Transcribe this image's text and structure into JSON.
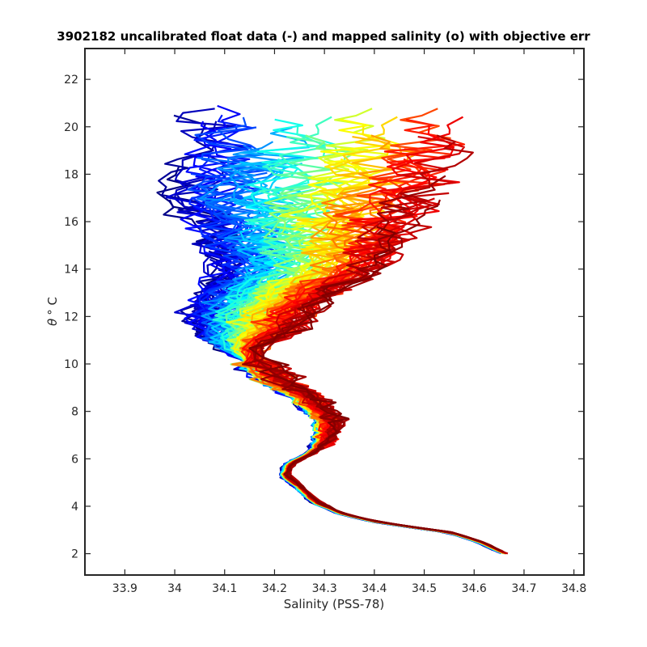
{
  "chart_data": {
    "type": "line",
    "title": "3902182 uncalibrated float data (-) and mapped salinity (o) with objective err",
    "xlabel": "Salinity (PSS-78)",
    "ylabel_symbol": "θ",
    "ylabel_unit": "° C",
    "xlim": [
      33.82,
      34.82
    ],
    "ylim": [
      1.1,
      23.3
    ],
    "xticks": [
      33.9,
      34,
      34.1,
      34.2,
      34.3,
      34.4,
      34.5,
      34.6,
      34.7,
      34.8
    ],
    "xtick_labels": [
      "33.9",
      "34",
      "34.1",
      "34.2",
      "34.3",
      "34.4",
      "34.5",
      "34.6",
      "34.7",
      "34.8"
    ],
    "yticks": [
      2,
      4,
      6,
      8,
      10,
      12,
      14,
      16,
      18,
      20,
      22
    ],
    "ytick_labels": [
      "2",
      "4",
      "6",
      "8",
      "10",
      "12",
      "14",
      "16",
      "18",
      "20",
      "22"
    ],
    "grid": false,
    "legend": "none",
    "colormap": "jet",
    "num_profiles": 120,
    "deep_curve": {
      "salinity": [
        34.66,
        34.61,
        34.55,
        34.48,
        34.4,
        34.33,
        34.28,
        34.25,
        34.22,
        34.23,
        34.27,
        34.3,
        34.31,
        34.28,
        34.25,
        34.2,
        34.16
      ],
      "theta": [
        2.0,
        2.5,
        2.9,
        3.1,
        3.35,
        3.7,
        4.2,
        4.8,
        5.3,
        5.8,
        6.2,
        6.8,
        7.5,
        8.1,
        8.7,
        9.3,
        10.0
      ]
    },
    "upper_branch_cold": {
      "salinity": [
        34.16,
        34.08,
        34.03,
        34.02,
        34.05,
        34.1,
        34.05,
        34.0,
        34.02
      ],
      "theta": [
        10.0,
        10.6,
        11.2,
        12.0,
        12.9,
        14.0,
        15.5,
        17.0,
        19.0
      ]
    },
    "upper_branch_warm": {
      "salinity": [
        34.16,
        34.2,
        34.28,
        34.3,
        34.33,
        34.4,
        34.46,
        34.52,
        34.6
      ],
      "theta": [
        10.0,
        10.8,
        11.6,
        12.5,
        13.2,
        13.8,
        15.0,
        17.0,
        19.5
      ]
    }
  }
}
